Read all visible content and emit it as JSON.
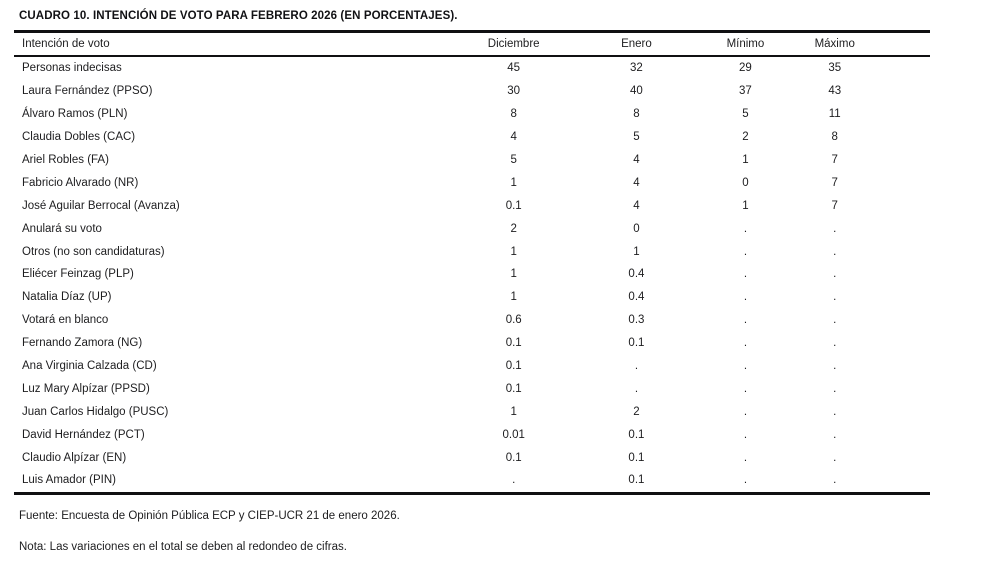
{
  "title": "CUADRO 10. INTENCIÓN DE VOTO PARA FEBRERO 2026 (EN PORCENTAJES).",
  "table": {
    "columns": {
      "intent": "Intención de voto",
      "december": "Diciembre",
      "january": "Enero",
      "min": "Mínimo",
      "max": "Máximo"
    },
    "rows": [
      [
        "Personas indecisas",
        "45",
        "32",
        "29",
        "35"
      ],
      [
        "Laura Fernández (PPSO)",
        "30",
        "40",
        "37",
        "43"
      ],
      [
        "Álvaro Ramos (PLN)",
        "8",
        "8",
        "5",
        "11"
      ],
      [
        "Claudia Dobles (CAC)",
        "4",
        "5",
        "2",
        "8"
      ],
      [
        "Ariel Robles (FA)",
        "5",
        "4",
        "1",
        "7"
      ],
      [
        "Fabricio Alvarado (NR)",
        "1",
        "4",
        "0",
        "7"
      ],
      [
        "José Aguilar Berrocal (Avanza)",
        "0.1",
        "4",
        "1",
        "7"
      ],
      [
        "Anulará su voto",
        "2",
        "0",
        ".",
        "."
      ],
      [
        "Otros (no son candidaturas)",
        "1",
        "1",
        ".",
        "."
      ],
      [
        "Eliécer Feinzag (PLP)",
        "1",
        "0.4",
        ".",
        "."
      ],
      [
        "Natalia Díaz (UP)",
        "1",
        "0.4",
        ".",
        "."
      ],
      [
        "Votará en blanco",
        "0.6",
        "0.3",
        ".",
        "."
      ],
      [
        "Fernando Zamora (NG)",
        "0.1",
        "0.1",
        ".",
        "."
      ],
      [
        "Ana Virginia Calzada (CD)",
        "0.1",
        ".",
        ".",
        "."
      ],
      [
        "Luz Mary Alpízar (PPSD)",
        "0.1",
        ".",
        ".",
        "."
      ],
      [
        "Juan Carlos Hidalgo (PUSC)",
        "1",
        "2",
        ".",
        "."
      ],
      [
        "David Hernández (PCT)",
        "0.01",
        "0.1",
        ".",
        "."
      ],
      [
        "Claudio Alpízar (EN)",
        "0.1",
        "0.1",
        ".",
        "."
      ],
      [
        "Luis Amador (PIN)",
        ".",
        "0.1",
        ".",
        "."
      ]
    ]
  },
  "footer": {
    "source": "Fuente: Encuesta de Opinión Pública ECP y CIEP-UCR 21 de enero 2026.",
    "note": "Nota: Las variaciones en el total se deben al redondeo de cifras."
  }
}
